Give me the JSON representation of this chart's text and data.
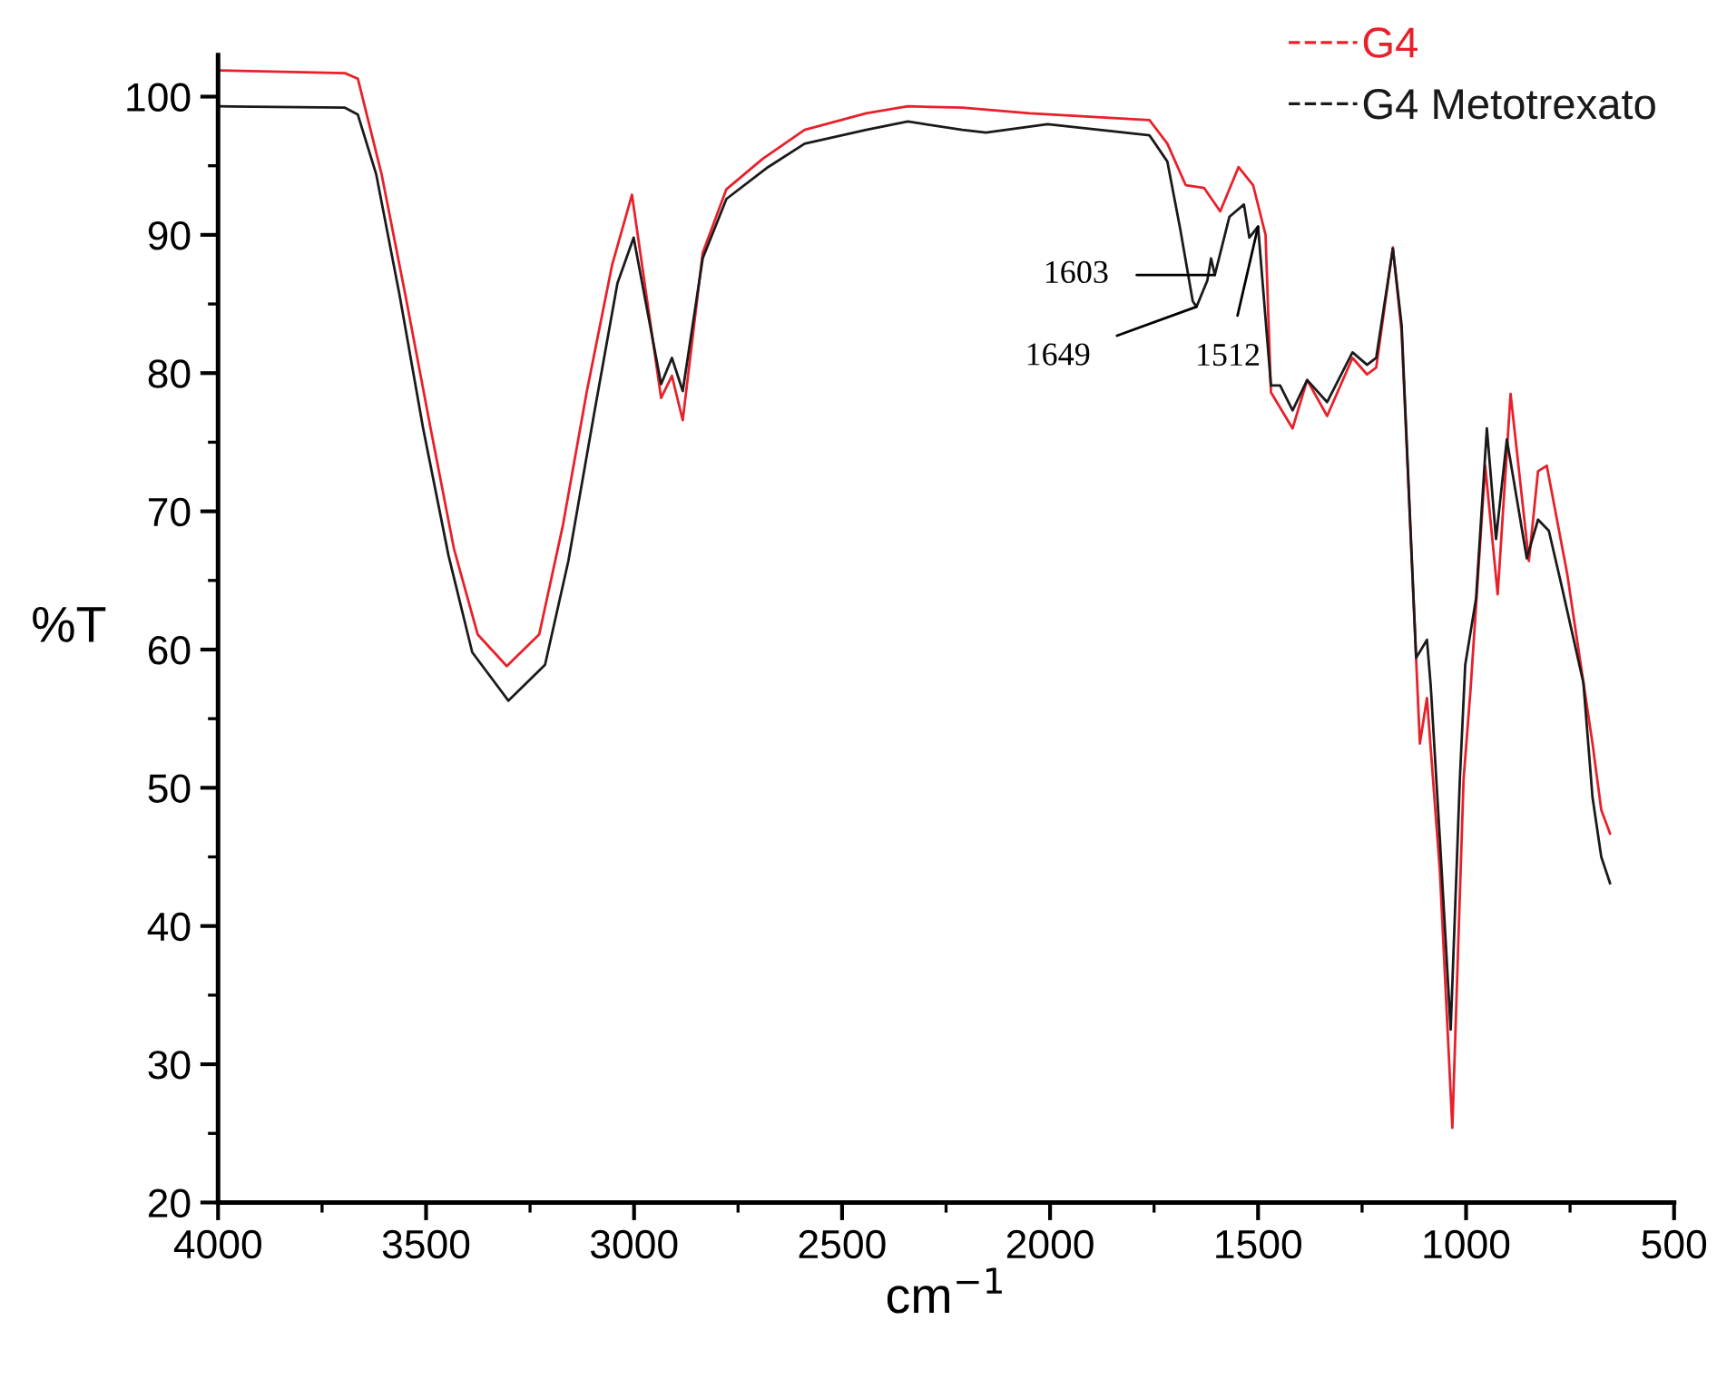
{
  "chart_data": {
    "type": "line",
    "xlabel": "cm$^{−1}$",
    "ylabel": "%T",
    "xlim": [
      4000,
      500
    ],
    "ylim": [
      20,
      103
    ],
    "xticks": [
      4000,
      3500,
      3000,
      2500,
      2000,
      1500,
      1000,
      500
    ],
    "yticks": [
      20,
      30,
      40,
      50,
      60,
      70,
      80,
      90,
      100
    ],
    "grid": false,
    "legend": "top right",
    "marker": "none",
    "line_style": "solid",
    "series": [
      {
        "name": "G4",
        "color": "#e8202a",
        "x": [
          4000,
          3695,
          3664,
          3607,
          3550,
          3489,
          3433,
          3376,
          3306,
          3228,
          3171,
          3114,
          3053,
          3005,
          2935,
          2909,
          2883,
          2835,
          2778,
          2691,
          2590,
          2442,
          2342,
          2211,
          2049,
          1761,
          1718,
          1674,
          1630,
          1591,
          1547,
          1512,
          1482,
          1469,
          1417,
          1382,
          1334,
          1273,
          1238,
          1216,
          1176,
          1155,
          1133,
          1111,
          1094,
          1063,
          1033,
          1006,
          989,
          954,
          924,
          893,
          849,
          827,
          806,
          757,
          696,
          675,
          654
        ],
        "values": [
          101.9,
          101.7,
          101.3,
          94.4,
          85.7,
          76.0,
          67.3,
          61.1,
          58.8,
          61.1,
          69.0,
          78.6,
          87.8,
          92.9,
          78.2,
          79.8,
          76.6,
          88.7,
          93.3,
          95.5,
          97.6,
          98.8,
          99.3,
          99.2,
          98.8,
          98.3,
          96.6,
          93.6,
          93.4,
          91.7,
          94.9,
          93.6,
          90.0,
          78.6,
          76.0,
          79.5,
          76.9,
          81.1,
          79.9,
          80.4,
          89.1,
          83.0,
          68.1,
          53.2,
          56.5,
          44.0,
          25.4,
          50.6,
          57.2,
          73.3,
          64.0,
          78.5,
          66.4,
          72.9,
          73.3,
          65.5,
          53.2,
          48.4,
          46.7
        ]
      },
      {
        "name": "G4 Metotrexato",
        "color": "#1a1a1a",
        "x": [
          4000,
          3695,
          3664,
          3620,
          3564,
          3507,
          3446,
          3389,
          3302,
          3214,
          3158,
          3097,
          3040,
          3001,
          2935,
          2909,
          2883,
          2835,
          2778,
          2678,
          2590,
          2442,
          2342,
          2211,
          2154,
          2006,
          1761,
          1718,
          1687,
          1657,
          1648,
          1622,
          1613,
          1604,
          1569,
          1534,
          1521,
          1500,
          1469,
          1447,
          1417,
          1382,
          1334,
          1273,
          1238,
          1216,
          1176,
          1155,
          1120,
          1094,
          1085,
          1063,
          1037,
          1015,
          1002,
          976,
          950,
          928,
          902,
          854,
          827,
          801,
          771,
          718,
          696,
          675,
          654
        ],
        "values": [
          99.3,
          99.2,
          98.7,
          94.4,
          85.7,
          76.0,
          66.8,
          59.8,
          56.3,
          58.9,
          66.4,
          76.9,
          86.5,
          89.8,
          79.2,
          81.1,
          78.7,
          88.3,
          92.6,
          94.9,
          96.6,
          97.6,
          98.2,
          97.6,
          97.4,
          98.0,
          97.2,
          95.3,
          90.4,
          85.2,
          84.8,
          86.7,
          88.3,
          87.1,
          91.3,
          92.2,
          89.8,
          90.6,
          79.1,
          79.1,
          77.3,
          79.5,
          77.9,
          81.5,
          80.6,
          81.1,
          89.0,
          83.5,
          59.4,
          60.7,
          57.4,
          46.3,
          32.5,
          50.6,
          58.9,
          63.7,
          76.0,
          68.0,
          75.2,
          66.6,
          69.4,
          68.6,
          64.7,
          57.6,
          49.3,
          45.0,
          43.1
        ]
      }
    ],
    "annotations": [
      {
        "text": "1603",
        "x": 1604,
        "y": 87.1
      },
      {
        "text": "1649",
        "x": 1648,
        "y": 84.8
      },
      {
        "text": "1512",
        "x": 1500,
        "y": 90.6
      }
    ]
  }
}
